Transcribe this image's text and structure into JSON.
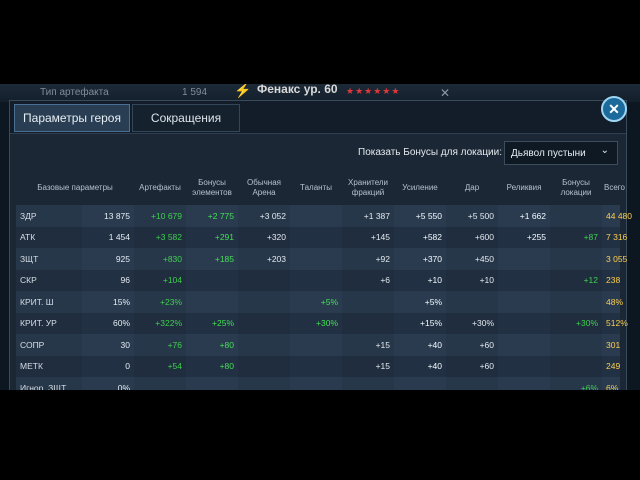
{
  "background": {
    "artifact_type": "Тип артефакта",
    "count": "1 594",
    "hero_title": "Фенакс ур. 60",
    "stars": "★★★★★★"
  },
  "tabs": [
    {
      "label": "Параметры героя"
    },
    {
      "label": "Сокращения"
    }
  ],
  "filter": {
    "label": "Показать Бонусы для локации:",
    "location_value": "Дьявол пустыни"
  },
  "columns": [
    "Базовые параметры",
    "Артефакты",
    "Бонусы элементов",
    "Обычная Арена",
    "Таланты",
    "Хранители фракций",
    "Усиление",
    "Дар",
    "Реликвия",
    "Бонусы локации",
    "Всего"
  ],
  "rows": [
    {
      "name": "ЗДР",
      "base": "13 875",
      "cells": [
        "+10 679",
        "+2 775",
        "+3 052",
        "",
        "+1 387",
        "+5 550",
        "+5 500",
        "+1 662",
        "",
        "44 480"
      ]
    },
    {
      "name": "АТК",
      "base": "1 454",
      "cells": [
        "+3 582",
        "+291",
        "+320",
        "",
        "+145",
        "+582",
        "+600",
        "+255",
        "+87",
        "7 316"
      ]
    },
    {
      "name": "ЗЩТ",
      "base": "925",
      "cells": [
        "+830",
        "+185",
        "+203",
        "",
        "+92",
        "+370",
        "+450",
        "",
        "",
        "3 055"
      ]
    },
    {
      "name": "СКР",
      "base": "96",
      "cells": [
        "+104",
        "",
        "",
        "",
        "+6",
        "+10",
        "+10",
        "",
        "+12",
        "238"
      ]
    },
    {
      "name": "КРИТ. Ш",
      "base": "15%",
      "cells": [
        "+23%",
        "",
        "",
        "+5%",
        "",
        "+5%",
        "",
        "",
        "",
        "48%"
      ]
    },
    {
      "name": "КРИТ. УР",
      "base": "60%",
      "cells": [
        "+322%",
        "+25%",
        "",
        "+30%",
        "",
        "+15%",
        "+30%",
        "",
        "+30%",
        "512%"
      ]
    },
    {
      "name": "СОПР",
      "base": "30",
      "cells": [
        "+76",
        "+80",
        "",
        "",
        "+15",
        "+40",
        "+60",
        "",
        "",
        "301"
      ]
    },
    {
      "name": "МЕТК",
      "base": "0",
      "cells": [
        "+54",
        "+80",
        "",
        "",
        "+15",
        "+40",
        "+60",
        "",
        "",
        "249"
      ]
    },
    {
      "name": "Игнор. ЗЩТ",
      "base": "0%",
      "cells": [
        "",
        "",
        "",
        "",
        "",
        "",
        "",
        "",
        "+6%",
        "6%"
      ]
    }
  ],
  "colors": {
    "positive": "#3fd04e",
    "total": "#e9c04a",
    "panel": "#1b2735"
  }
}
